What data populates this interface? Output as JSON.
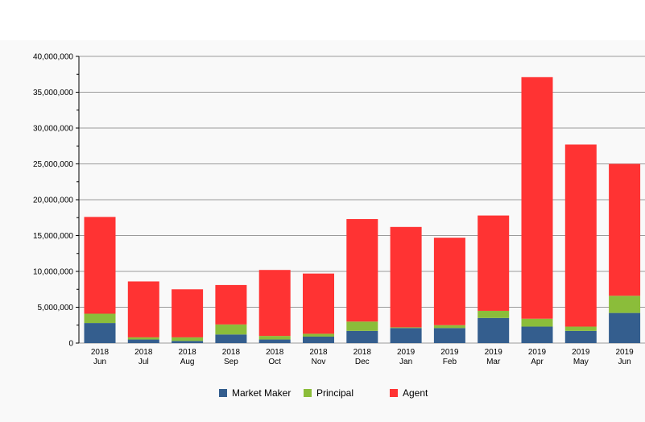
{
  "chart_data": {
    "type": "bar",
    "stacked": true,
    "categories": [
      [
        "2018",
        "Jun"
      ],
      [
        "2018",
        "Jul"
      ],
      [
        "2018",
        "Aug"
      ],
      [
        "2018",
        "Sep"
      ],
      [
        "2018",
        "Oct"
      ],
      [
        "2018",
        "Nov"
      ],
      [
        "2018",
        "Dec"
      ],
      [
        "2019",
        "Jan"
      ],
      [
        "2019",
        "Feb"
      ],
      [
        "2019",
        "Mar"
      ],
      [
        "2019",
        "Apr"
      ],
      [
        "2019",
        "May"
      ],
      [
        "2019",
        "Jun"
      ]
    ],
    "series": [
      {
        "name": "Market Maker",
        "color": "#345e8e",
        "values": [
          2800000,
          500000,
          300000,
          1200000,
          500000,
          900000,
          1700000,
          2100000,
          2100000,
          3500000,
          2300000,
          1700000,
          4200000
        ]
      },
      {
        "name": "Principal",
        "color": "#8bbd3a",
        "values": [
          1300000,
          300000,
          500000,
          1400000,
          500000,
          400000,
          1300000,
          100000,
          400000,
          1000000,
          1100000,
          600000,
          2400000
        ]
      },
      {
        "name": "Agent",
        "color": "#ff3333",
        "values": [
          13500000,
          7800000,
          6700000,
          5500000,
          9200000,
          8400000,
          14300000,
          14000000,
          12200000,
          13300000,
          33700000,
          25400000,
          18400000
        ]
      }
    ],
    "y_ticks": [
      "0",
      "5,000,000",
      "10,000,000",
      "15,000,000",
      "20,000,000",
      "25,000,000",
      "30,000,000",
      "35,000,000",
      "40,000,000"
    ],
    "ylim": [
      0,
      40000000
    ],
    "grid": true,
    "legend_position": "bottom"
  }
}
